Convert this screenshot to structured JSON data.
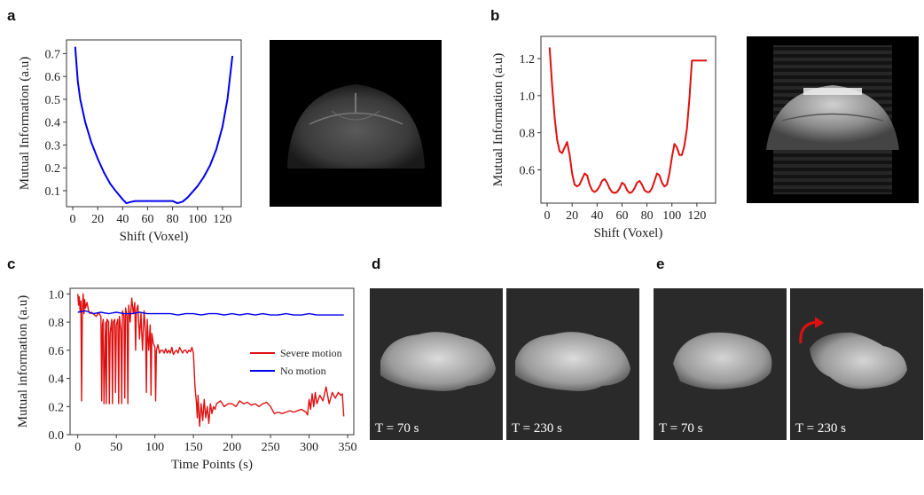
{
  "panels": {
    "a": "a",
    "b": "b",
    "c": "c",
    "d": "d",
    "e": "e"
  },
  "image_labels": {
    "d_left": "T = 70 s",
    "d_right": "T = 230 s",
    "e_left": "T = 70 s",
    "e_right": "T = 230 s"
  },
  "colors": {
    "blue": "#0000ee",
    "red": "#e01010",
    "arrow": "#e01010"
  },
  "chart_data": [
    {
      "id": "a",
      "type": "line",
      "xlabel": "Shift (Voxel)",
      "ylabel": "Mutual Information (a.u)",
      "xlim": [
        -5,
        135
      ],
      "ylim": [
        0.03,
        0.76
      ],
      "xticks": [
        0,
        20,
        40,
        60,
        80,
        100,
        120
      ],
      "yticks": [
        0.1,
        0.2,
        0.3,
        0.4,
        0.5,
        0.6,
        0.7
      ],
      "yticklabels": [
        "0.1",
        "0.2",
        "0.3",
        "0.4",
        "0.5",
        "0.6",
        "0.7"
      ],
      "grid": false,
      "series": [
        {
          "color": "#0000ee",
          "x": [
            2,
            4,
            6,
            10,
            15,
            20,
            25,
            30,
            35,
            40,
            43,
            46,
            50,
            60,
            70,
            80,
            84,
            88,
            92,
            96,
            100,
            105,
            110,
            115,
            120,
            124,
            128
          ],
          "y": [
            0.73,
            0.58,
            0.5,
            0.4,
            0.31,
            0.24,
            0.18,
            0.13,
            0.095,
            0.062,
            0.045,
            0.05,
            0.055,
            0.055,
            0.055,
            0.055,
            0.045,
            0.052,
            0.07,
            0.095,
            0.12,
            0.16,
            0.21,
            0.28,
            0.38,
            0.5,
            0.69
          ]
        }
      ]
    },
    {
      "id": "b",
      "type": "line",
      "xlabel": "Shift (Voxel)",
      "ylabel": "Mutual Information (a.u)",
      "xlim": [
        -5,
        135
      ],
      "ylim": [
        0.42,
        1.32
      ],
      "xticks": [
        0,
        20,
        40,
        60,
        80,
        100,
        120
      ],
      "yticks": [
        0.6,
        0.8,
        1.0,
        1.2
      ],
      "yticklabels": [
        "0.6",
        "0.8",
        "1.0",
        "1.2"
      ],
      "grid": false,
      "series": [
        {
          "color": "#e01010",
          "x": [
            2,
            4,
            6,
            8,
            10,
            12,
            14,
            16,
            18,
            20,
            22,
            24,
            26,
            28,
            30,
            32,
            34,
            36,
            38,
            40,
            42,
            44,
            46,
            48,
            50,
            52,
            54,
            56,
            58,
            60,
            62,
            64,
            66,
            68,
            70,
            72,
            74,
            76,
            78,
            80,
            82,
            84,
            86,
            88,
            90,
            92,
            94,
            96,
            98,
            100,
            102,
            104,
            106,
            108,
            110,
            112,
            114,
            116,
            118,
            120,
            122,
            124,
            126,
            128
          ],
          "y": [
            1.26,
            1.05,
            0.88,
            0.76,
            0.7,
            0.69,
            0.72,
            0.75,
            0.68,
            0.58,
            0.52,
            0.51,
            0.52,
            0.55,
            0.58,
            0.57,
            0.52,
            0.49,
            0.48,
            0.49,
            0.51,
            0.54,
            0.55,
            0.53,
            0.5,
            0.48,
            0.475,
            0.48,
            0.5,
            0.53,
            0.52,
            0.49,
            0.475,
            0.48,
            0.5,
            0.53,
            0.54,
            0.52,
            0.49,
            0.48,
            0.48,
            0.5,
            0.54,
            0.58,
            0.57,
            0.53,
            0.51,
            0.52,
            0.58,
            0.67,
            0.74,
            0.72,
            0.68,
            0.68,
            0.73,
            0.82,
            0.98,
            1.19,
            1.19,
            1.19,
            1.19,
            1.19,
            1.19,
            1.19
          ]
        }
      ]
    },
    {
      "id": "c",
      "type": "line",
      "xlabel": "Time Points (s)",
      "ylabel": "Mutual information (a.u)",
      "xlim": [
        -10,
        358
      ],
      "ylim": [
        0.0,
        1.04
      ],
      "xticks": [
        0,
        50,
        100,
        150,
        200,
        250,
        300,
        350
      ],
      "yticks": [
        0.0,
        0.2,
        0.4,
        0.6,
        0.8,
        1.0
      ],
      "yticklabels": [
        "0.0",
        "0.2",
        "0.4",
        "0.6",
        "0.8",
        "1.0"
      ],
      "grid": false,
      "legend": "center-right",
      "series": [
        {
          "name": "Severe motion",
          "color": "#e01010",
          "x": [
            0,
            1,
            2,
            3,
            4,
            5,
            6,
            7,
            8,
            9,
            10,
            12,
            14,
            16,
            18,
            20,
            22,
            24,
            26,
            28,
            30,
            31,
            32,
            33,
            34,
            36,
            37,
            38,
            40,
            41,
            42,
            44,
            45,
            46,
            48,
            49,
            50,
            52,
            53,
            54,
            56,
            57,
            58,
            60,
            61,
            62,
            64,
            65,
            66,
            68,
            70,
            72,
            74,
            75,
            76,
            78,
            80,
            82,
            84,
            86,
            88,
            89,
            90,
            92,
            94,
            95,
            96,
            98,
            100,
            101,
            102,
            104,
            106,
            108,
            110,
            112,
            114,
            116,
            118,
            120,
            122,
            124,
            126,
            128,
            130,
            132,
            134,
            136,
            138,
            140,
            142,
            144,
            146,
            148,
            150,
            152,
            154,
            155,
            156,
            158,
            160,
            162,
            164,
            166,
            168,
            170,
            172,
            174,
            176,
            178,
            180,
            185,
            190,
            195,
            200,
            205,
            210,
            215,
            220,
            225,
            230,
            235,
            240,
            245,
            250,
            255,
            260,
            265,
            270,
            275,
            280,
            285,
            290,
            293,
            296,
            298,
            300,
            302,
            304,
            306,
            308,
            310,
            314,
            318,
            322,
            326,
            330,
            334,
            338,
            341,
            343,
            345
          ],
          "y": [
            1.0,
            0.92,
            0.98,
            0.88,
            0.95,
            0.24,
            0.9,
            1.0,
            0.86,
            0.96,
            0.9,
            0.94,
            0.88,
            0.86,
            0.87,
            0.86,
            0.85,
            0.84,
            0.86,
            0.86,
            0.84,
            0.24,
            0.78,
            0.82,
            0.22,
            0.8,
            0.22,
            0.82,
            0.8,
            0.22,
            0.72,
            0.82,
            0.22,
            0.8,
            0.82,
            0.3,
            0.78,
            0.82,
            0.22,
            0.84,
            0.74,
            0.22,
            0.88,
            0.84,
            0.26,
            0.9,
            0.84,
            0.22,
            0.92,
            0.8,
            0.97,
            0.86,
            0.94,
            0.6,
            0.88,
            0.92,
            0.68,
            0.86,
            0.6,
            0.88,
            0.72,
            0.3,
            0.82,
            0.6,
            0.78,
            0.28,
            0.72,
            0.65,
            0.62,
            0.24,
            0.6,
            0.64,
            0.58,
            0.6,
            0.6,
            0.58,
            0.61,
            0.58,
            0.6,
            0.58,
            0.62,
            0.57,
            0.59,
            0.6,
            0.58,
            0.62,
            0.6,
            0.58,
            0.6,
            0.6,
            0.58,
            0.6,
            0.59,
            0.62,
            0.58,
            0.34,
            0.22,
            0.12,
            0.28,
            0.06,
            0.22,
            0.1,
            0.25,
            0.12,
            0.2,
            0.08,
            0.22,
            0.15,
            0.2,
            0.18,
            0.22,
            0.24,
            0.2,
            0.22,
            0.22,
            0.2,
            0.24,
            0.22,
            0.23,
            0.21,
            0.22,
            0.2,
            0.22,
            0.23,
            0.2,
            0.15,
            0.16,
            0.15,
            0.16,
            0.17,
            0.16,
            0.17,
            0.18,
            0.17,
            0.16,
            0.14,
            0.25,
            0.18,
            0.29,
            0.2,
            0.3,
            0.22,
            0.28,
            0.24,
            0.34,
            0.22,
            0.3,
            0.26,
            0.3,
            0.28,
            0.29,
            0.13
          ]
        },
        {
          "name": "No motion",
          "color": "#0000ee",
          "x": [
            0,
            10,
            20,
            30,
            40,
            50,
            60,
            70,
            80,
            90,
            100,
            110,
            120,
            130,
            140,
            150,
            160,
            170,
            180,
            190,
            200,
            210,
            220,
            230,
            240,
            250,
            260,
            270,
            280,
            290,
            300,
            310,
            320,
            330,
            340,
            345
          ],
          "y": [
            0.87,
            0.88,
            0.86,
            0.87,
            0.86,
            0.87,
            0.86,
            0.86,
            0.87,
            0.86,
            0.86,
            0.86,
            0.86,
            0.85,
            0.86,
            0.86,
            0.85,
            0.86,
            0.86,
            0.85,
            0.86,
            0.85,
            0.86,
            0.85,
            0.86,
            0.85,
            0.85,
            0.86,
            0.85,
            0.85,
            0.86,
            0.85,
            0.85,
            0.85,
            0.85,
            0.85
          ]
        }
      ]
    }
  ]
}
